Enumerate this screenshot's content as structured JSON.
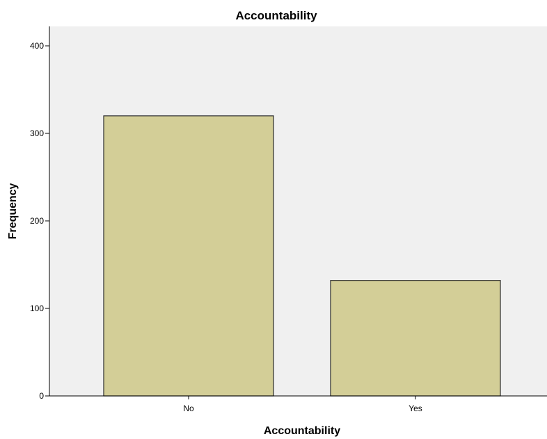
{
  "chart_data": {
    "type": "bar",
    "title": "Accountability",
    "xlabel": "Accountability",
    "ylabel": "Frequency",
    "categories": [
      "No",
      "Yes"
    ],
    "values": [
      320,
      132
    ],
    "ylim": [
      0,
      420
    ],
    "yticks": [
      0,
      100,
      200,
      300,
      400
    ],
    "grid": false,
    "legend": "none"
  },
  "colors": {
    "plot_background": "#f0f0f0",
    "bar_fill": "#d3ce97",
    "bar_stroke": "#2b2b2b",
    "axis": "#000000"
  }
}
